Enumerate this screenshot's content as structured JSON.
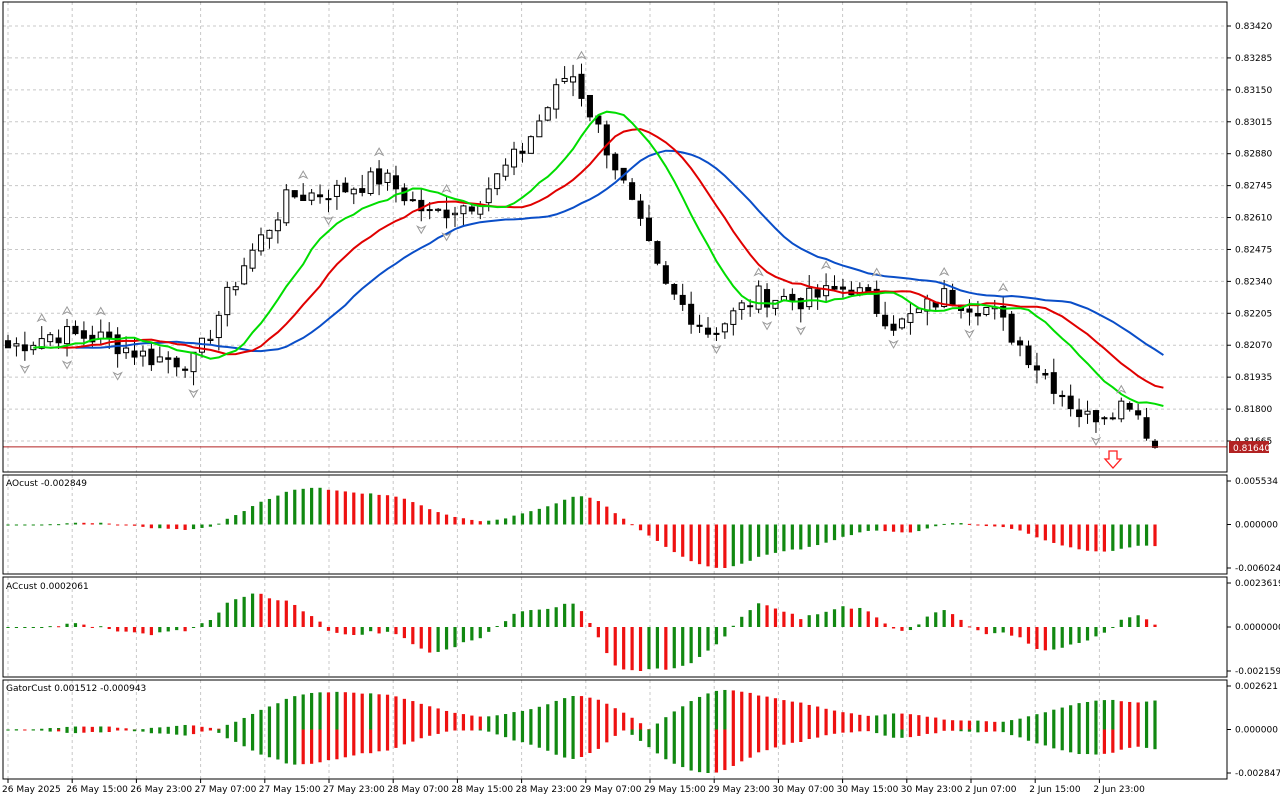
{
  "colors": {
    "background": "#ffffff",
    "frame": "#000000",
    "grid": "#c8c8c8",
    "bull_body": "#ffffff",
    "bear_body": "#000000",
    "candle_wick": "#000000",
    "jaw": "#0a4ec8",
    "teeth": "#e00000",
    "lips": "#00dd00",
    "fractal": "#9a9a9a",
    "price_line": "#b22222",
    "price_label_bg": "#b22222",
    "price_label_text": "#ffffff",
    "arrow": "#ff2020",
    "hist_up": "#118811",
    "hist_down": "#ee1111"
  },
  "main_panel": {
    "y_ticks": [
      "0.83420",
      "0.83285",
      "0.83150",
      "0.83015",
      "0.82880",
      "0.82745",
      "0.82610",
      "0.82475",
      "0.82340",
      "0.82205",
      "0.82070",
      "0.81935",
      "0.81800",
      "0.81665"
    ],
    "current_price_label": "0.81640"
  },
  "ao_panel": {
    "label": "AOcust -0.002849",
    "ticks": [
      "0.005534",
      "0.000000",
      "-0.006024"
    ]
  },
  "ac_panel": {
    "label": "ACcust 0.0002061",
    "ticks": [
      "0.0023619",
      "0.0000000",
      "-0.0021594"
    ]
  },
  "gator_panel": {
    "label": "GatorCust 0.001512 -0.000943",
    "ticks": [
      "0.002621",
      "0.000000",
      "-0.002847"
    ]
  },
  "x_axis": {
    "labels": [
      "26 May 2025",
      "26 May 15:00",
      "26 May 23:00",
      "27 May 07:00",
      "27 May 15:00",
      "27 May 23:00",
      "28 May 07:00",
      "28 May 15:00",
      "28 May 23:00",
      "29 May 07:00",
      "29 May 15:00",
      "29 May 23:00",
      "30 May 07:00",
      "30 May 15:00",
      "30 May 23:00",
      "2 Jun 07:00",
      "2 Jun 15:00",
      "2 Jun 23:00"
    ]
  },
  "chart_data": {
    "type": "candlestick",
    "timeframe_bars": 137,
    "y_range": [
      0.816,
      0.8347
    ],
    "current_price": 0.8164,
    "candles_close_key": [
      [
        0,
        0.8206
      ],
      [
        8,
        0.8212
      ],
      [
        16,
        0.821
      ],
      [
        24,
        0.8202
      ],
      [
        32,
        0.82
      ],
      [
        40,
        0.824
      ],
      [
        48,
        0.827
      ],
      [
        56,
        0.8272
      ],
      [
        64,
        0.8278
      ],
      [
        72,
        0.8262
      ],
      [
        80,
        0.8268
      ],
      [
        88,
        0.829
      ],
      [
        96,
        0.8324
      ],
      [
        104,
        0.8282
      ],
      [
        112,
        0.8232
      ],
      [
        120,
        0.8212
      ],
      [
        128,
        0.8228
      ],
      [
        136,
        0.8226
      ],
      [
        144,
        0.8232
      ],
      [
        152,
        0.8215
      ],
      [
        160,
        0.8228
      ],
      [
        168,
        0.8222
      ],
      [
        176,
        0.8198
      ],
      [
        184,
        0.8176
      ],
      [
        192,
        0.8184
      ],
      [
        196,
        0.8164
      ]
    ],
    "series": [
      {
        "name": "AOcust",
        "last": -0.002849
      },
      {
        "name": "ACcust",
        "last": 0.0002061
      },
      {
        "name": "GatorCust",
        "last": [
          0.001512,
          -0.000943
        ]
      }
    ]
  }
}
